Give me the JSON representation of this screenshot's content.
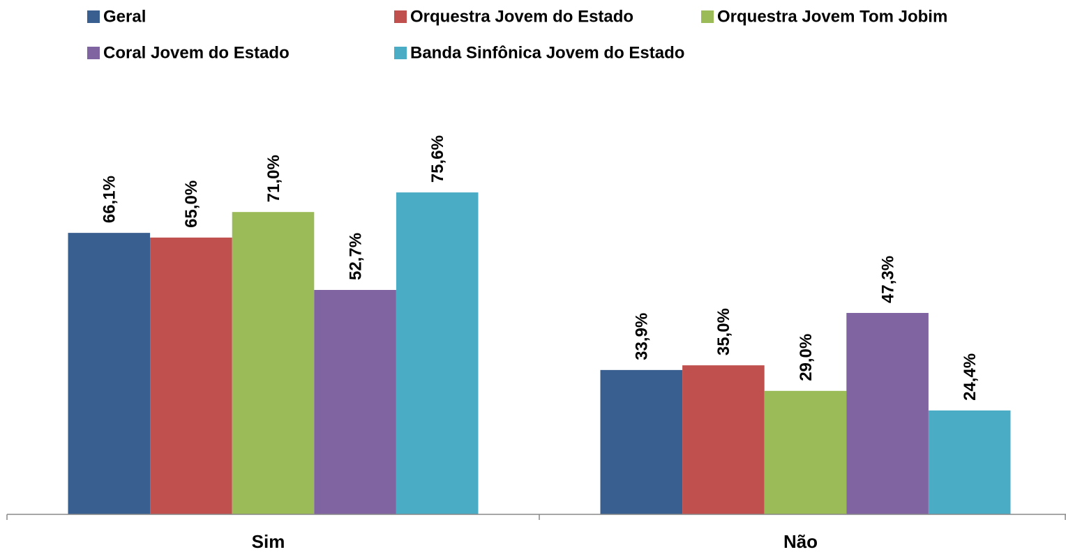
{
  "chart_data": {
    "type": "bar",
    "categories": [
      "Sim",
      "Não"
    ],
    "ylim": [
      0,
      100
    ],
    "legend": "top",
    "series": [
      {
        "name": "Geral",
        "color": "#385f8f",
        "values": [
          66.1,
          33.9
        ],
        "value_labels": [
          "66,1%",
          "33,9%"
        ]
      },
      {
        "name": "Orquestra Jovem do Estado",
        "color": "#c0504d",
        "values": [
          65.0,
          35.0
        ],
        "value_labels": [
          "65,0%",
          "35,0%"
        ]
      },
      {
        "name": "Orquestra Jovem Tom Jobim",
        "color": "#9bbb59",
        "values": [
          71.0,
          29.0
        ],
        "value_labels": [
          "71,0%",
          "29,0%"
        ]
      },
      {
        "name": "Coral Jovem do Estado",
        "color": "#8064a2",
        "values": [
          52.7,
          47.3
        ],
        "value_labels": [
          "52,7%",
          "47,3%"
        ]
      },
      {
        "name": "Banda Sinfônica Jovem do Estado",
        "color": "#4bacc6",
        "values": [
          75.6,
          24.4
        ],
        "value_labels": [
          "75,6%",
          "24,4%"
        ]
      }
    ]
  }
}
